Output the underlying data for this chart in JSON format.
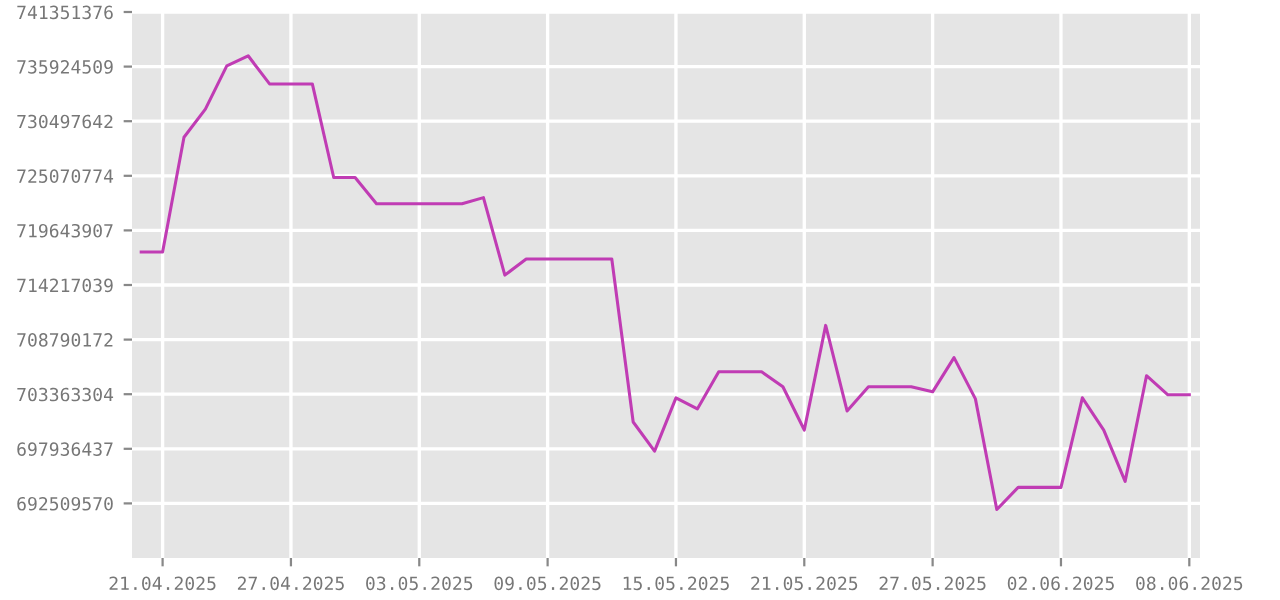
{
  "chart_data": {
    "type": "line",
    "x": [
      "2025-04-20",
      "2025-04-21",
      "2025-04-22",
      "2025-04-23",
      "2025-04-24",
      "2025-04-25",
      "2025-04-26",
      "2025-04-27",
      "2025-04-28",
      "2025-04-29",
      "2025-04-30",
      "2025-05-01",
      "2025-05-02",
      "2025-05-03",
      "2025-05-04",
      "2025-05-05",
      "2025-05-06",
      "2025-05-07",
      "2025-05-08",
      "2025-05-09",
      "2025-05-10",
      "2025-05-11",
      "2025-05-12",
      "2025-05-13",
      "2025-05-14",
      "2025-05-15",
      "2025-05-16",
      "2025-05-17",
      "2025-05-18",
      "2025-05-19",
      "2025-05-20",
      "2025-05-21",
      "2025-05-22",
      "2025-05-23",
      "2025-05-24",
      "2025-05-25",
      "2025-05-26",
      "2025-05-27",
      "2025-05-28",
      "2025-05-29",
      "2025-05-30",
      "2025-05-31",
      "2025-06-01",
      "2025-06-02",
      "2025-06-03",
      "2025-06-04",
      "2025-06-05",
      "2025-06-06",
      "2025-06-07",
      "2025-06-08"
    ],
    "series": [
      {
        "color": "#c03cb4",
        "values": [
          717500000,
          717500000,
          728900000,
          731700000,
          736000000,
          737000000,
          734200000,
          734200000,
          734200000,
          724900000,
          724900000,
          722300000,
          722300000,
          722300000,
          722300000,
          722300000,
          722900000,
          715200000,
          716800000,
          716800000,
          716800000,
          716800000,
          716800000,
          700600000,
          697700000,
          703000000,
          701900000,
          705600000,
          705600000,
          705600000,
          704100000,
          699800000,
          710200000,
          701700000,
          704100000,
          704100000,
          704100000,
          703600000,
          707000000,
          702900000,
          691900000,
          694100000,
          694100000,
          694100000,
          703000000,
          699800000,
          694700000,
          705200000,
          703300000,
          703300000
        ]
      }
    ],
    "xlim": [
      "2025-04-19T13:40",
      "2025-06-08T12:00"
    ],
    "xticks": [
      {
        "value": "2025-04-21",
        "label": "21.04.2025"
      },
      {
        "value": "2025-04-27",
        "label": "27.04.2025"
      },
      {
        "value": "2025-05-03",
        "label": "03.05.2025"
      },
      {
        "value": "2025-05-09",
        "label": "09.05.2025"
      },
      {
        "value": "2025-05-15",
        "label": "15.05.2025"
      },
      {
        "value": "2025-05-21",
        "label": "21.05.2025"
      },
      {
        "value": "2025-05-27",
        "label": "27.05.2025"
      },
      {
        "value": "2025-06-02",
        "label": "02.06.2025"
      },
      {
        "value": "2025-06-08",
        "label": "08.06.2025"
      }
    ],
    "ylim": [
      687082703,
      741351376
    ],
    "yticks": [
      692509570,
      697936437,
      703363304,
      708790172,
      714217039,
      719643907,
      725070774,
      730497642,
      735924509,
      741351376
    ],
    "grid": true,
    "marker": "none",
    "line_style": "solid"
  }
}
